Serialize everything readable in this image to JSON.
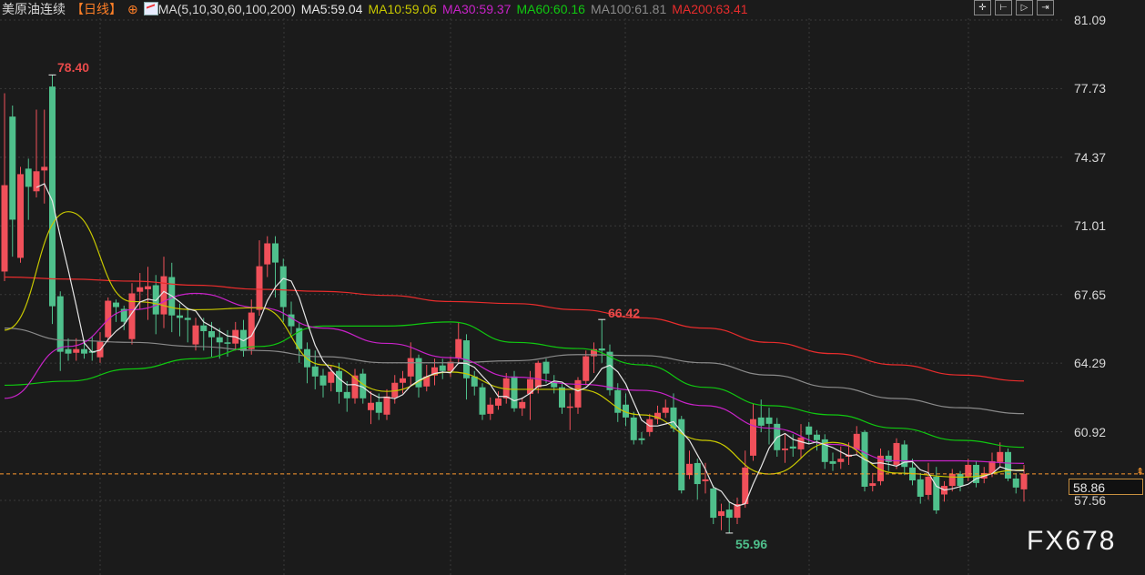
{
  "header": {
    "title": "美原油连续",
    "period": "【日线】",
    "period_icon": "crosshair-circle-icon",
    "ma_icon": "indicator-chart-icon",
    "ma_params": "MA(5,10,30,60,100,200)",
    "ma5": "MA5:59.04",
    "ma10": "MA10:59.06",
    "ma30": "MA30:59.37",
    "ma60": "MA60:60.16",
    "ma100": "MA100:61.81",
    "ma200": "MA200:63.41"
  },
  "toolbar": {
    "icons": [
      "crosshair-icon",
      "zoom-range-icon",
      "play-icon",
      "exit-icon"
    ]
  },
  "watermark": "FX678",
  "colors": {
    "background": "#1b1b1b",
    "up": "#f0505a",
    "down": "#4fc08c",
    "ma5": "#e6e6e6",
    "ma10": "#c8c800",
    "ma30": "#c822c8",
    "ma60": "#10c810",
    "ma100": "#8a8a8a",
    "ma200": "#e82c2c",
    "current_line": "#ff9a2e"
  },
  "chart_data": {
    "type": "candlestick",
    "title": "",
    "ylim": [
      57.56,
      81.09
    ],
    "ytick_labels": [
      "81.09",
      "77.73",
      "74.37",
      "71.01",
      "67.65",
      "64.29",
      "60.92",
      "57.56"
    ],
    "grid": true,
    "current_price": "58.86",
    "annotations": {
      "high": "78.40",
      "local_high": "66.42",
      "low": "55.96"
    },
    "candles_ohlc": [
      [
        68.77,
        73.0,
        77.5,
        68.3
      ],
      [
        76.36,
        71.31,
        76.9,
        69.5
      ],
      [
        69.44,
        73.54,
        73.9,
        69.2
      ],
      [
        73.81,
        72.92,
        74.3,
        71.3
      ],
      [
        72.7,
        73.68,
        76.7,
        72.4
      ],
      [
        73.72,
        73.9,
        76.7,
        72.1
      ],
      [
        77.83,
        67.07,
        78.4,
        66.2
      ],
      [
        67.56,
        64.84,
        67.8,
        63.9
      ],
      [
        64.97,
        64.75,
        65.5,
        64.4
      ],
      [
        64.79,
        64.97,
        65.5,
        64.4
      ],
      [
        64.97,
        64.75,
        65.4,
        64.5
      ],
      [
        64.88,
        64.79,
        65.6,
        64.4
      ],
      [
        64.57,
        65.33,
        65.8,
        64.3
      ],
      [
        65.55,
        67.34,
        67.5,
        65.3
      ],
      [
        67.25,
        67.03,
        67.4,
        66.3
      ],
      [
        66.94,
        66.31,
        67.1,
        65.9
      ],
      [
        65.46,
        67.7,
        68.2,
        65.2
      ],
      [
        67.78,
        68.0,
        68.7,
        66.9
      ],
      [
        67.9,
        68.05,
        69.0,
        66.4
      ],
      [
        68.1,
        66.67,
        68.6,
        65.7
      ],
      [
        66.67,
        68.54,
        69.5,
        66.0
      ],
      [
        68.5,
        66.62,
        69.2,
        65.8
      ],
      [
        66.62,
        66.5,
        67.2,
        65.6
      ],
      [
        66.5,
        66.4,
        67.0,
        65.3
      ],
      [
        65.2,
        66.13,
        66.5,
        64.9
      ],
      [
        66.13,
        65.85,
        66.5,
        64.9
      ],
      [
        65.85,
        65.55,
        66.3,
        64.6
      ],
      [
        65.55,
        65.3,
        66.0,
        64.5
      ],
      [
        65.3,
        65.24,
        65.9,
        64.6
      ],
      [
        65.24,
        65.91,
        66.3,
        64.9
      ],
      [
        65.91,
        64.88,
        66.4,
        64.6
      ],
      [
        64.97,
        66.76,
        67.4,
        64.7
      ],
      [
        66.89,
        69.03,
        70.3,
        66.6
      ],
      [
        69.12,
        70.15,
        70.5,
        68.5
      ],
      [
        70.15,
        69.21,
        70.5,
        67.5
      ],
      [
        69.03,
        67.03,
        69.4,
        66.3
      ],
      [
        66.67,
        66.09,
        67.3,
        65.7
      ],
      [
        66.0,
        64.97,
        66.3,
        64.3
      ],
      [
        64.97,
        64.08,
        65.3,
        63.3
      ],
      [
        64.12,
        63.63,
        64.9,
        63.0
      ],
      [
        63.68,
        63.19,
        64.0,
        62.6
      ],
      [
        63.32,
        63.86,
        64.2,
        62.9
      ],
      [
        63.9,
        62.87,
        64.3,
        62.3
      ],
      [
        62.87,
        62.56,
        63.4,
        61.9
      ],
      [
        62.56,
        63.68,
        64.0,
        62.3
      ],
      [
        63.77,
        62.56,
        64.0,
        62.3
      ],
      [
        61.98,
        62.34,
        62.9,
        61.3
      ],
      [
        62.38,
        61.85,
        62.8,
        61.5
      ],
      [
        61.76,
        62.65,
        63.0,
        61.5
      ],
      [
        62.6,
        63.32,
        63.7,
        62.3
      ],
      [
        63.32,
        63.54,
        63.9,
        62.8
      ],
      [
        63.63,
        64.53,
        65.3,
        63.2
      ],
      [
        64.53,
        63.1,
        64.7,
        62.6
      ],
      [
        63.14,
        63.63,
        64.2,
        62.9
      ],
      [
        63.68,
        64.08,
        64.5,
        63.2
      ],
      [
        64.17,
        63.9,
        64.5,
        63.5
      ],
      [
        63.9,
        64.35,
        64.6,
        63.6
      ],
      [
        64.53,
        65.46,
        66.3,
        64.3
      ],
      [
        65.4,
        63.54,
        65.7,
        62.5
      ],
      [
        63.63,
        63.14,
        63.9,
        62.7
      ],
      [
        63.1,
        61.76,
        63.3,
        61.5
      ],
      [
        61.8,
        62.25,
        62.6,
        61.5
      ],
      [
        62.2,
        62.56,
        62.9,
        62.0
      ],
      [
        62.56,
        63.54,
        63.8,
        62.3
      ],
      [
        63.63,
        62.07,
        63.9,
        61.9
      ],
      [
        62.07,
        62.38,
        62.6,
        61.7
      ],
      [
        62.78,
        63.5,
        63.9,
        61.5
      ],
      [
        63.1,
        64.3,
        64.4,
        62.8
      ],
      [
        64.35,
        63.77,
        64.5,
        63.3
      ],
      [
        63.32,
        63.1,
        63.7,
        62.8
      ],
      [
        63.1,
        62.11,
        63.3,
        61.8
      ],
      [
        62.11,
        62.16,
        62.8,
        61.0
      ],
      [
        62.11,
        63.45,
        63.6,
        61.8
      ],
      [
        63.41,
        64.62,
        64.9,
        63.2
      ],
      [
        64.62,
        64.97,
        65.3,
        63.8
      ],
      [
        65.0,
        64.9,
        66.42,
        64.3
      ],
      [
        64.84,
        62.96,
        65.2,
        62.7
      ],
      [
        62.96,
        61.85,
        63.3,
        61.4
      ],
      [
        62.25,
        61.62,
        62.8,
        61.2
      ],
      [
        61.62,
        60.51,
        61.9,
        60.3
      ],
      [
        60.6,
        60.51,
        60.9,
        60.3
      ],
      [
        60.91,
        61.54,
        61.8,
        60.7
      ],
      [
        61.54,
        61.85,
        62.2,
        61.3
      ],
      [
        61.85,
        62.11,
        62.5,
        61.6
      ],
      [
        62.11,
        61.09,
        62.8,
        60.9
      ],
      [
        61.54,
        58.05,
        61.7,
        57.9
      ],
      [
        58.8,
        59.35,
        60.0,
        58.6
      ],
      [
        59.39,
        58.36,
        59.6,
        57.6
      ],
      [
        58.5,
        58.59,
        59.4,
        57.9
      ],
      [
        58.14,
        56.71,
        58.3,
        56.4
      ],
      [
        56.8,
        57.03,
        57.4,
        56.1
      ],
      [
        57.11,
        56.71,
        57.5,
        55.96
      ],
      [
        56.71,
        57.38,
        57.7,
        56.4
      ],
      [
        57.38,
        59.17,
        60.0,
        57.2
      ],
      [
        59.75,
        61.54,
        62.3,
        59.5
      ],
      [
        61.62,
        61.22,
        62.5,
        60.9
      ],
      [
        61.62,
        61.31,
        62.1,
        60.3
      ],
      [
        61.31,
        60.02,
        61.6,
        59.7
      ],
      [
        60.02,
        60.1,
        60.8,
        59.4
      ],
      [
        60.2,
        60.1,
        60.8,
        59.7
      ],
      [
        60.06,
        60.64,
        61.3,
        59.6
      ],
      [
        61.18,
        60.78,
        61.4,
        60.3
      ],
      [
        60.78,
        60.51,
        61.0,
        60.0
      ],
      [
        60.55,
        59.44,
        60.8,
        59.1
      ],
      [
        59.48,
        59.35,
        59.9,
        59.0
      ],
      [
        59.44,
        59.6,
        60.2,
        59.1
      ],
      [
        59.7,
        59.8,
        60.4,
        59.3
      ],
      [
        60.06,
        60.82,
        61.2,
        59.8
      ],
      [
        60.91,
        58.23,
        61.0,
        58.0
      ],
      [
        58.27,
        58.4,
        58.9,
        58.0
      ],
      [
        58.5,
        59.75,
        60.1,
        58.3
      ],
      [
        59.75,
        59.44,
        60.0,
        59.0
      ],
      [
        59.3,
        60.37,
        60.6,
        59.1
      ],
      [
        60.3,
        59.2,
        60.5,
        58.8
      ],
      [
        59.17,
        58.54,
        59.6,
        58.3
      ],
      [
        58.59,
        57.74,
        58.9,
        57.4
      ],
      [
        57.83,
        58.72,
        59.4,
        57.6
      ],
      [
        58.72,
        57.07,
        59.2,
        56.9
      ],
      [
        57.85,
        58.27,
        58.5,
        57.5
      ],
      [
        58.27,
        58.86,
        59.1,
        58.0
      ],
      [
        58.86,
        58.27,
        59.0,
        58.0
      ],
      [
        58.72,
        59.3,
        59.6,
        58.5
      ],
      [
        59.3,
        58.41,
        59.5,
        58.2
      ],
      [
        58.63,
        58.9,
        59.2,
        58.4
      ],
      [
        58.86,
        59.48,
        59.9,
        58.7
      ],
      [
        59.44,
        59.93,
        60.4,
        59.2
      ],
      [
        59.93,
        58.63,
        60.1,
        58.5
      ],
      [
        58.63,
        58.19,
        58.9,
        57.9
      ],
      [
        58.1,
        58.86,
        59.3,
        57.5
      ]
    ],
    "ma_series_every_8_candles": {
      "MA10": [
        65.9,
        71.7,
        67.3,
        66.9,
        67.0,
        64.2,
        62.9,
        63.85,
        63.0,
        63.0,
        61.75,
        60.5,
        58.85,
        60.4,
        58.9,
        58.7,
        59.06
      ],
      "MA30": [
        62.56,
        65.1,
        66.9,
        67.7,
        67.0,
        66.0,
        65.25,
        64.55,
        63.6,
        63.25,
        62.95,
        62.2,
        61.1,
        60.3,
        59.5,
        59.5,
        59.37
      ],
      "MA60": [
        63.2,
        63.4,
        64.0,
        64.5,
        65.1,
        66.1,
        66.1,
        66.3,
        65.3,
        65.0,
        64.2,
        63.1,
        62.2,
        61.75,
        61.1,
        60.5,
        60.16
      ],
      "MA100": [
        66.0,
        65.4,
        65.3,
        65.1,
        64.9,
        64.6,
        64.3,
        64.3,
        64.4,
        64.7,
        64.65,
        64.3,
        63.7,
        63.1,
        62.55,
        62.1,
        61.81
      ],
      "MA200": [
        68.5,
        68.4,
        68.3,
        68.1,
        67.9,
        67.8,
        67.6,
        67.3,
        67.2,
        66.9,
        66.5,
        66.0,
        65.3,
        64.75,
        64.2,
        63.7,
        63.41
      ]
    }
  }
}
